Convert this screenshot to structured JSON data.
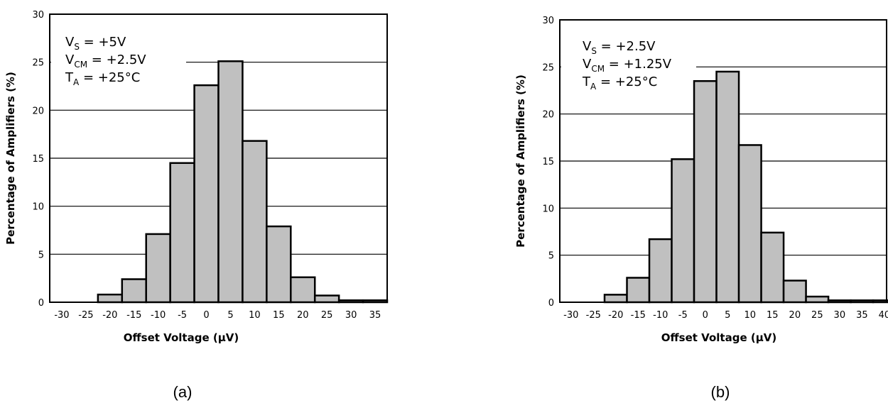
{
  "chart_data": [
    {
      "type": "bar",
      "xlabel": "Offset Voltage (µV)",
      "ylabel": "Percentage of Amplifiers (%)",
      "ylim": [
        0,
        30
      ],
      "xlim": [
        -32.5,
        37.5
      ],
      "bin_width": 5,
      "xticks": [
        "-30",
        "-25",
        "-20",
        "-15",
        "-10",
        "-5",
        "0",
        "5",
        "10",
        "15",
        "20",
        "25",
        "30",
        "35"
      ],
      "yticks": [
        "0",
        "5",
        "10",
        "15",
        "20",
        "25",
        "30"
      ],
      "grid": "horizontal",
      "annotations": [
        {
          "main": "V",
          "sub": "S",
          "rest": " = +5V"
        },
        {
          "main": "V",
          "sub": "CM",
          "rest": " = +2.5V"
        },
        {
          "main": "T",
          "sub": "A",
          "rest": " = +25°C"
        }
      ],
      "panel_label": "(a)",
      "categories": [
        -20,
        -15,
        -10,
        -5,
        0,
        5,
        10,
        15,
        20,
        25,
        30,
        35
      ],
      "values": [
        0.8,
        2.4,
        7.1,
        14.5,
        22.6,
        25.1,
        16.8,
        7.9,
        2.6,
        0.7,
        0.2,
        0.2
      ]
    },
    {
      "type": "bar",
      "xlabel": "Offset Voltage (µV)",
      "ylabel": "Percentage of Amplifiers (%)",
      "ylim": [
        0,
        30
      ],
      "xlim": [
        -32.5,
        40.5
      ],
      "bin_width": 5,
      "xticks": [
        "-30",
        "-25",
        "-20",
        "-15",
        "-10",
        "-5",
        "0",
        "5",
        "10",
        "15",
        "20",
        "25",
        "30",
        "35",
        "40"
      ],
      "yticks": [
        "0",
        "5",
        "10",
        "15",
        "20",
        "25",
        "30"
      ],
      "grid": "horizontal",
      "annotations": [
        {
          "main": "V",
          "sub": "S",
          "rest": " = +2.5V"
        },
        {
          "main": "V",
          "sub": "CM",
          "rest": " = +1.25V"
        },
        {
          "main": "T",
          "sub": "A",
          "rest": " = +25°C"
        }
      ],
      "panel_label": "(b)",
      "categories": [
        -20,
        -15,
        -10,
        -5,
        0,
        5,
        10,
        15,
        20,
        25,
        30,
        35,
        40
      ],
      "values": [
        0.8,
        2.6,
        6.7,
        15.2,
        23.5,
        24.5,
        16.7,
        7.4,
        2.3,
        0.6,
        0.2,
        0.2,
        0.2
      ]
    }
  ]
}
